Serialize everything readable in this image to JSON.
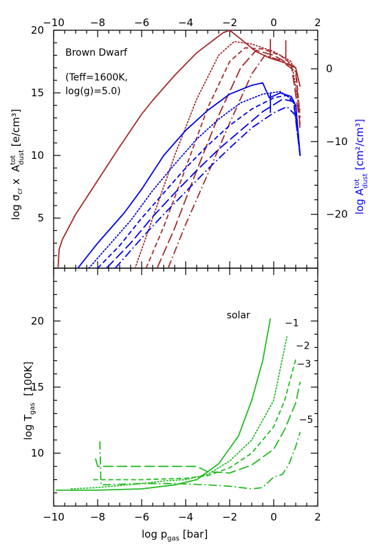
{
  "chart_data": [
    {
      "type": "line",
      "panel": "top",
      "title": "",
      "xlabel": "",
      "ylabel_left": {
        "main": "log σ",
        "sub": "cr",
        "rest": " x  A",
        "sup": "tot",
        "sub2": "dust",
        "unit": " [e/cm³]"
      },
      "ylabel_right": {
        "main": "log A",
        "sup": "tot",
        "sub": "dust",
        "unit": " [cm²/cm³]"
      },
      "xlim": [
        -10,
        2
      ],
      "ylim_left": [
        1,
        20
      ],
      "ylim_right": [
        -27.4,
        5.3
      ],
      "x_ticks": [
        "−10",
        "−8",
        "−6",
        "−4",
        "−2",
        "0",
        "2"
      ],
      "x_tick_values": [
        -10,
        -8,
        -6,
        -4,
        -2,
        0,
        2
      ],
      "y_ticks_left": [
        "5",
        "10",
        "15",
        "20"
      ],
      "y_tick_values_left": [
        5,
        10,
        15,
        20
      ],
      "y_ticks_right": [
        "−20",
        "−10",
        "0"
      ],
      "y_tick_values_right": [
        -20,
        -10,
        0
      ],
      "annotations": [
        "Brown Dwarf",
        "(Teff=1600K,",
        "log(g)=5.0)"
      ],
      "colors": {
        "sigma": "#a52a2a",
        "dust": "#0000ee"
      },
      "series": [
        {
          "group": "sigma",
          "style": "solid",
          "axis": "left",
          "points": [
            [
              -9.8,
              1
            ],
            [
              -9.75,
              2.5
            ],
            [
              -9.6,
              3.3
            ],
            [
              -9,
              5.3
            ],
            [
              -8,
              8.0
            ],
            [
              -7,
              10.7
            ],
            [
              -6,
              13.3
            ],
            [
              -5.5,
              14.4
            ],
            [
              -4.5,
              16.4
            ],
            [
              -3.5,
              18.2
            ],
            [
              -2.3,
              19.8
            ],
            [
              -2,
              20.0
            ],
            [
              -1.5,
              19.3
            ],
            [
              -0.8,
              18.3
            ],
            [
              -0.2,
              17.8
            ],
            [
              0.5,
              17.4
            ],
            [
              1.0,
              17.0
            ],
            [
              1.2,
              15.5
            ]
          ]
        },
        {
          "group": "sigma",
          "style": "dotted",
          "axis": "left",
          "points": [
            [
              -6.3,
              1
            ],
            [
              -5.5,
              5.0
            ],
            [
              -4.5,
              10.0
            ],
            [
              -3.5,
              14.5
            ],
            [
              -2.5,
              18.0
            ],
            [
              -1.8,
              19.1
            ],
            [
              -1.0,
              18.9
            ],
            [
              0.0,
              18.3
            ],
            [
              0.8,
              17.5
            ],
            [
              1.2,
              13.5
            ]
          ]
        },
        {
          "group": "sigma",
          "style": "short-dash",
          "axis": "left",
          "points": [
            [
              -5.8,
              1
            ],
            [
              -5,
              4.3
            ],
            [
              -4,
              9.0
            ],
            [
              -3,
              13.8
            ],
            [
              -2,
              17.5
            ],
            [
              -1.3,
              18.6
            ],
            [
              -0.5,
              18.5
            ],
            [
              0.3,
              18.0
            ],
            [
              1.0,
              17.0
            ],
            [
              1.2,
              13.0
            ]
          ]
        },
        {
          "group": "sigma",
          "style": "long-dash",
          "axis": "left",
          "points": [
            [
              -5.3,
              1
            ],
            [
              -4.5,
              4.2
            ],
            [
              -3.5,
              8.8
            ],
            [
              -2.5,
              13.2
            ],
            [
              -1.5,
              17.0
            ],
            [
              -0.8,
              18.4
            ],
            [
              0.0,
              18.0
            ],
            [
              0.8,
              17.2
            ],
            [
              1.2,
              12.5
            ]
          ]
        },
        {
          "group": "sigma",
          "style": "dash-dot",
          "axis": "left",
          "points": [
            [
              -4.8,
              1
            ],
            [
              -4,
              4.5
            ],
            [
              -3,
              8.5
            ],
            [
              -2,
              12.6
            ],
            [
              -1,
              16.5
            ],
            [
              -0.4,
              18.0
            ],
            [
              0.3,
              17.6
            ],
            [
              1.0,
              16.7
            ],
            [
              1.2,
              12.0
            ]
          ]
        },
        {
          "group": "dust",
          "style": "solid",
          "axis": "left",
          "points": [
            [
              -8.9,
              1
            ],
            [
              -8,
              3.0
            ],
            [
              -6.8,
              5.4
            ],
            [
              -6,
              7.3
            ],
            [
              -5,
              10.0
            ],
            [
              -4,
              12.0
            ],
            [
              -3,
              13.6
            ],
            [
              -2,
              14.9
            ],
            [
              -1,
              15.6
            ],
            [
              -0.5,
              15.8
            ],
            [
              -0.2,
              14.6
            ],
            [
              0.3,
              15.0
            ],
            [
              0.8,
              14.7
            ],
            [
              1.0,
              14.0
            ],
            [
              1.2,
              10.0
            ]
          ]
        },
        {
          "group": "dust",
          "style": "dotted",
          "axis": "left",
          "points": [
            [
              -8.4,
              1
            ],
            [
              -7.5,
              2.8
            ],
            [
              -6.5,
              4.8
            ],
            [
              -5.5,
              7.2
            ],
            [
              -4.5,
              9.3
            ],
            [
              -3.5,
              11.3
            ],
            [
              -2.5,
              12.9
            ],
            [
              -1.5,
              14.2
            ],
            [
              -0.5,
              14.9
            ],
            [
              0.3,
              15.1
            ],
            [
              0.9,
              14.4
            ],
            [
              1.2,
              10.0
            ]
          ]
        },
        {
          "group": "dust",
          "style": "short-dash",
          "axis": "left",
          "points": [
            [
              -8.0,
              1
            ],
            [
              -7,
              2.8
            ],
            [
              -6,
              5.0
            ],
            [
              -5,
              7.0
            ],
            [
              -4,
              9.0
            ],
            [
              -3,
              10.8
            ],
            [
              -2,
              12.4
            ],
            [
              -1,
              13.7
            ],
            [
              0,
              14.6
            ],
            [
              0.6,
              14.8
            ],
            [
              1.0,
              14.0
            ],
            [
              1.2,
              10.0
            ]
          ]
        },
        {
          "group": "dust",
          "style": "long-dash",
          "axis": "left",
          "points": [
            [
              -7.6,
              1
            ],
            [
              -6.5,
              3.0
            ],
            [
              -5.5,
              5.1
            ],
            [
              -4.5,
              7.0
            ],
            [
              -3.5,
              8.8
            ],
            [
              -2.5,
              10.5
            ],
            [
              -1.5,
              12.0
            ],
            [
              -0.5,
              13.5
            ],
            [
              0.4,
              14.5
            ],
            [
              0.9,
              14.3
            ],
            [
              1.2,
              10.0
            ]
          ]
        },
        {
          "group": "dust",
          "style": "dash-dot",
          "axis": "left",
          "points": [
            [
              -7.2,
              1
            ],
            [
              -6,
              3.4
            ],
            [
              -5,
              5.3
            ],
            [
              -4,
              7.1
            ],
            [
              -3,
              8.9
            ],
            [
              -2,
              10.6
            ],
            [
              -1,
              12.2
            ],
            [
              0,
              13.4
            ],
            [
              0.6,
              13.9
            ],
            [
              1.0,
              13.2
            ],
            [
              1.2,
              10.0
            ]
          ]
        }
      ],
      "spikes": [
        {
          "group": "sigma",
          "x": -0.15,
          "y0": 17.8,
          "y1": 19.3
        },
        {
          "group": "sigma",
          "x": 0.55,
          "y0": 17.6,
          "y1": 19.2
        },
        {
          "group": "dust",
          "x": -0.15,
          "y0": 13.4,
          "y1": 15.0
        }
      ]
    },
    {
      "type": "line",
      "panel": "bottom",
      "title": "",
      "xlabel": {
        "main": "log p",
        "sub": "gas",
        "unit": " [bar]"
      },
      "ylabel": {
        "main": "log T",
        "sub": "gas",
        "unit": "  [100K]"
      },
      "xlim": [
        -10,
        2
      ],
      "ylim": [
        6,
        24
      ],
      "x_ticks": [
        "−10",
        "−8",
        "−6",
        "−4",
        "−2",
        "0",
        "2"
      ],
      "x_tick_values": [
        -10,
        -8,
        -6,
        -4,
        -2,
        0,
        2
      ],
      "y_ticks": [
        "10",
        "15",
        "20"
      ],
      "y_tick_values": [
        10,
        15,
        20
      ],
      "color": "#22bb22",
      "series": [
        {
          "name": "solar",
          "style": "solid",
          "points": [
            [
              -9.9,
              7.2
            ],
            [
              -8,
              7.2
            ],
            [
              -6,
              7.3
            ],
            [
              -4.5,
              7.6
            ],
            [
              -3.5,
              8.0
            ],
            [
              -2.5,
              9.2
            ],
            [
              -1.6,
              11.3
            ],
            [
              -1,
              14.0
            ],
            [
              -0.5,
              17.0
            ],
            [
              -0.15,
              20.2
            ]
          ]
        },
        {
          "name": "−1",
          "style": "dotted",
          "points": [
            [
              -9.2,
              7.3
            ],
            [
              -8,
              7.4
            ],
            [
              -6,
              7.7
            ],
            [
              -5,
              7.9
            ],
            [
              -4,
              8.0
            ],
            [
              -3,
              8.4
            ],
            [
              -2,
              9.4
            ],
            [
              -1,
              11.0
            ],
            [
              0,
              14.0
            ],
            [
              0.6,
              18.8
            ]
          ]
        },
        {
          "name": "−2",
          "style": "short-dash",
          "points": [
            [
              -8.2,
              8.0
            ],
            [
              -6,
              8.0
            ],
            [
              -4,
              8.1
            ],
            [
              -3,
              8.3
            ],
            [
              -2,
              8.9
            ],
            [
              -1,
              10.0
            ],
            [
              0,
              12.0
            ],
            [
              0.5,
              14.0
            ],
            [
              1.0,
              17.1
            ]
          ]
        },
        {
          "name": "−3",
          "style": "long-dash",
          "points": [
            [
              -8.1,
              9.6
            ],
            [
              -8.0,
              9.0
            ],
            [
              -4,
              9.0
            ],
            [
              -3.5,
              9.0
            ],
            [
              -3,
              8.6
            ],
            [
              -2,
              8.5
            ],
            [
              -1,
              9.1
            ],
            [
              0,
              10.3
            ],
            [
              0.5,
              11.8
            ],
            [
              1.0,
              13.8
            ],
            [
              1.2,
              15.4
            ]
          ]
        },
        {
          "name": "−5",
          "style": "dash-dot",
          "points": [
            [
              -7.9,
              10.9
            ],
            [
              -7.85,
              7.6
            ],
            [
              -6,
              7.7
            ],
            [
              -4.5,
              7.7
            ],
            [
              -3,
              7.6
            ],
            [
              -2,
              7.5
            ],
            [
              -1,
              7.3
            ],
            [
              -0.5,
              7.4
            ],
            [
              0,
              8.2
            ],
            [
              0.4,
              8.4
            ],
            [
              0.7,
              9.2
            ],
            [
              1.0,
              10.5
            ],
            [
              1.2,
              11.6
            ]
          ]
        }
      ],
      "series_labels": [
        {
          "text": "solar",
          "x": -1.2,
          "y": 20.2
        },
        {
          "text": "−1",
          "x": 0.5,
          "y": 19.6
        },
        {
          "text": "−2",
          "x": 1.0,
          "y": 17.9
        },
        {
          "text": "−3",
          "x": 1.05,
          "y": 16.5
        },
        {
          "text": "−5",
          "x": 1.15,
          "y": 12.3
        }
      ]
    }
  ]
}
